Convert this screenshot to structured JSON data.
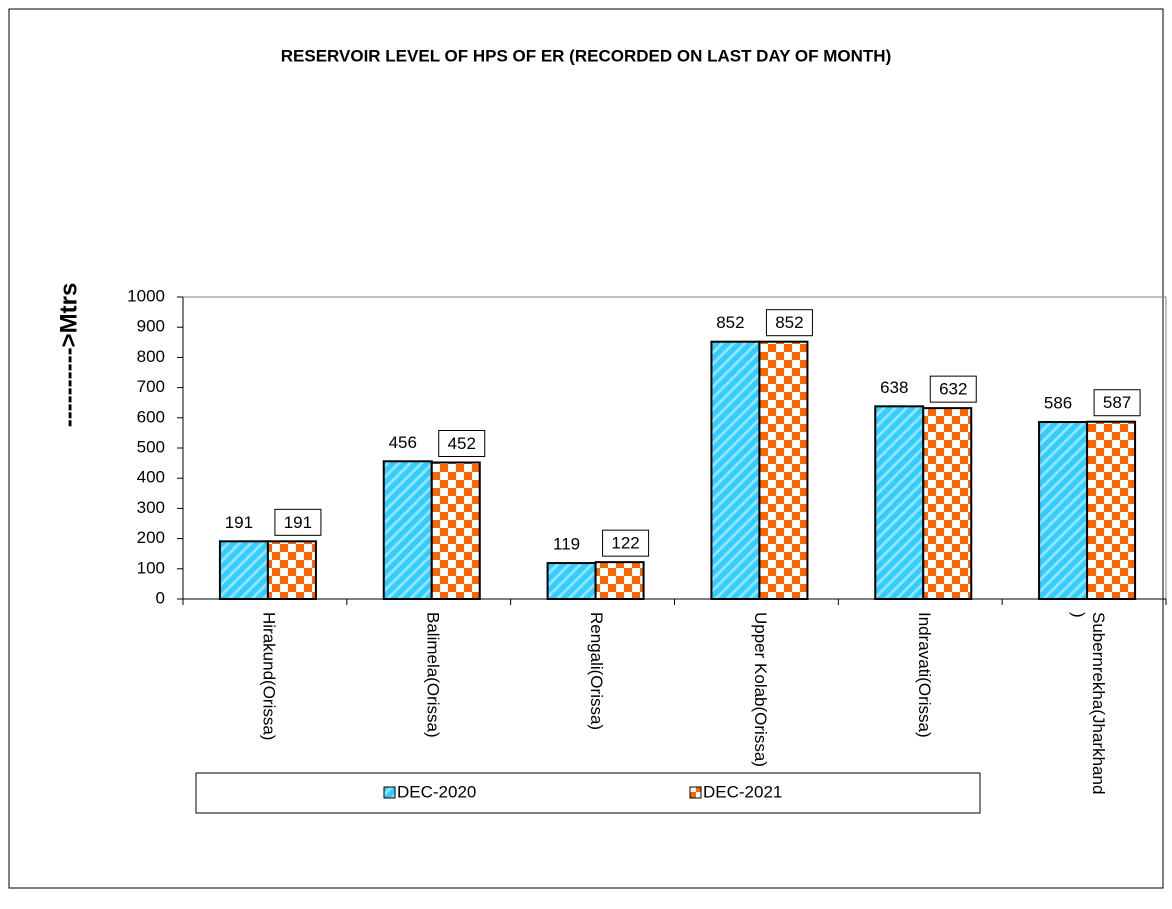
{
  "chart_data": {
    "type": "bar",
    "title": "RESERVOIR LEVEL OF HPS OF ER (RECORDED ON LAST DAY OF MONTH)",
    "y_label": "---------->Mtrs",
    "categories": [
      "Hirakund(Orissa)",
      "Balimela(Orissa)",
      "Rengali(Orissa)",
      "Upper Kolab(Orissa)",
      "Indravati(Orissa)",
      "Subernrekha(Jharkhand)"
    ],
    "series": [
      {
        "name": "DEC-2020",
        "color": "#33ccff",
        "values": [
          191,
          456,
          119,
          852,
          638,
          586
        ]
      },
      {
        "name": "DEC-2021",
        "color": "#ff6600",
        "values": [
          191,
          452,
          122,
          852,
          632,
          587
        ]
      }
    ],
    "ylim": [
      0,
      1000
    ],
    "yticks": [
      0,
      100,
      200,
      300,
      400,
      500,
      600,
      700,
      800,
      900,
      1000
    ],
    "legend": "bottom"
  }
}
